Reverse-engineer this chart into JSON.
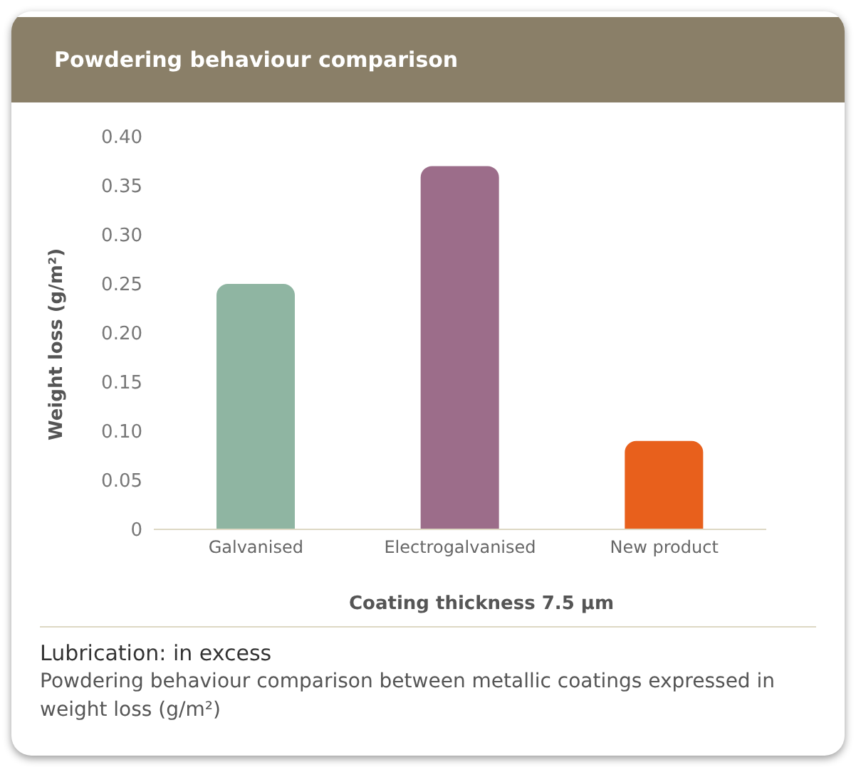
{
  "chart_data": {
    "type": "bar",
    "title": "Powdering behaviour comparison",
    "categories": [
      "Galvanised",
      "Electrogalvanised",
      "New product"
    ],
    "values": [
      0.25,
      0.37,
      0.09
    ],
    "colors": [
      "#8fb5a2",
      "#9c6d8a",
      "#e8601c"
    ],
    "ylim": [
      0,
      0.4
    ],
    "yticks": [
      {
        "value": 0,
        "label": "0"
      },
      {
        "value": 0.05,
        "label": "0.05"
      },
      {
        "value": 0.1,
        "label": "0.10"
      },
      {
        "value": 0.15,
        "label": "0.15"
      },
      {
        "value": 0.2,
        "label": "0.20"
      },
      {
        "value": 0.25,
        "label": "0.25"
      },
      {
        "value": 0.3,
        "label": "0.30"
      },
      {
        "value": 0.35,
        "label": "0.35"
      },
      {
        "value": 0.4,
        "label": "0.40"
      }
    ],
    "ylabel": "Weight loss (g/m²)",
    "xlabel": "Coating thickness 7.5 µm",
    "grid": false,
    "annotations": [
      "Lubrication: in excess",
      "Powdering behaviour comparison between metallic coatings expressed in weight loss (g/m²)"
    ]
  }
}
